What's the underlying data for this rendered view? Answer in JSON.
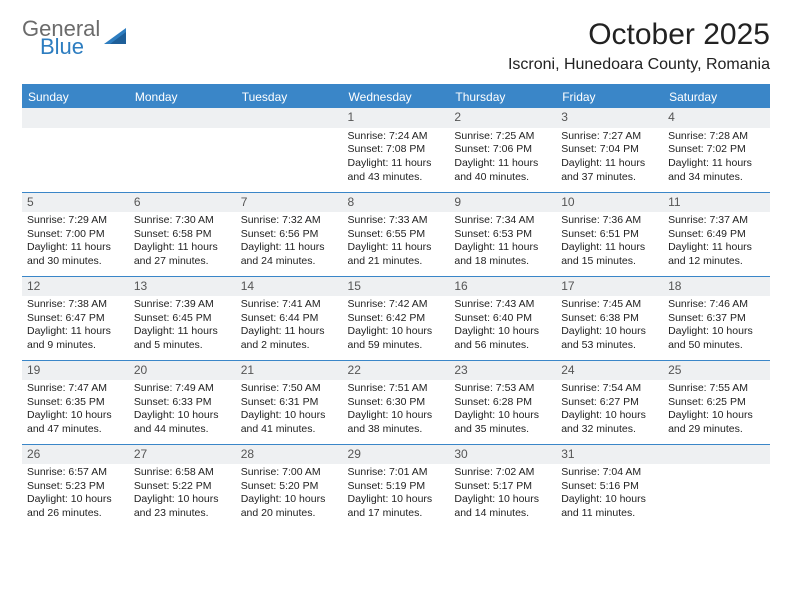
{
  "brand": {
    "general": "General",
    "blue": "Blue"
  },
  "title": "October 2025",
  "location": "Iscroni, Hunedoara County, Romania",
  "colors": {
    "header_bg": "#3a86c8",
    "header_text": "#ffffff",
    "daynum_bg": "#eef0f2",
    "border": "#3a86c8",
    "logo_gray": "#6b6b6b",
    "logo_blue": "#2d7dc0"
  },
  "weekdays": [
    "Sunday",
    "Monday",
    "Tuesday",
    "Wednesday",
    "Thursday",
    "Friday",
    "Saturday"
  ],
  "weeks": [
    [
      {
        "day": "",
        "lines": []
      },
      {
        "day": "",
        "lines": []
      },
      {
        "day": "",
        "lines": []
      },
      {
        "day": "1",
        "lines": [
          "Sunrise: 7:24 AM",
          "Sunset: 7:08 PM",
          "Daylight: 11 hours and 43 minutes."
        ]
      },
      {
        "day": "2",
        "lines": [
          "Sunrise: 7:25 AM",
          "Sunset: 7:06 PM",
          "Daylight: 11 hours and 40 minutes."
        ]
      },
      {
        "day": "3",
        "lines": [
          "Sunrise: 7:27 AM",
          "Sunset: 7:04 PM",
          "Daylight: 11 hours and 37 minutes."
        ]
      },
      {
        "day": "4",
        "lines": [
          "Sunrise: 7:28 AM",
          "Sunset: 7:02 PM",
          "Daylight: 11 hours and 34 minutes."
        ]
      }
    ],
    [
      {
        "day": "5",
        "lines": [
          "Sunrise: 7:29 AM",
          "Sunset: 7:00 PM",
          "Daylight: 11 hours and 30 minutes."
        ]
      },
      {
        "day": "6",
        "lines": [
          "Sunrise: 7:30 AM",
          "Sunset: 6:58 PM",
          "Daylight: 11 hours and 27 minutes."
        ]
      },
      {
        "day": "7",
        "lines": [
          "Sunrise: 7:32 AM",
          "Sunset: 6:56 PM",
          "Daylight: 11 hours and 24 minutes."
        ]
      },
      {
        "day": "8",
        "lines": [
          "Sunrise: 7:33 AM",
          "Sunset: 6:55 PM",
          "Daylight: 11 hours and 21 minutes."
        ]
      },
      {
        "day": "9",
        "lines": [
          "Sunrise: 7:34 AM",
          "Sunset: 6:53 PM",
          "Daylight: 11 hours and 18 minutes."
        ]
      },
      {
        "day": "10",
        "lines": [
          "Sunrise: 7:36 AM",
          "Sunset: 6:51 PM",
          "Daylight: 11 hours and 15 minutes."
        ]
      },
      {
        "day": "11",
        "lines": [
          "Sunrise: 7:37 AM",
          "Sunset: 6:49 PM",
          "Daylight: 11 hours and 12 minutes."
        ]
      }
    ],
    [
      {
        "day": "12",
        "lines": [
          "Sunrise: 7:38 AM",
          "Sunset: 6:47 PM",
          "Daylight: 11 hours and 9 minutes."
        ]
      },
      {
        "day": "13",
        "lines": [
          "Sunrise: 7:39 AM",
          "Sunset: 6:45 PM",
          "Daylight: 11 hours and 5 minutes."
        ]
      },
      {
        "day": "14",
        "lines": [
          "Sunrise: 7:41 AM",
          "Sunset: 6:44 PM",
          "Daylight: 11 hours and 2 minutes."
        ]
      },
      {
        "day": "15",
        "lines": [
          "Sunrise: 7:42 AM",
          "Sunset: 6:42 PM",
          "Daylight: 10 hours and 59 minutes."
        ]
      },
      {
        "day": "16",
        "lines": [
          "Sunrise: 7:43 AM",
          "Sunset: 6:40 PM",
          "Daylight: 10 hours and 56 minutes."
        ]
      },
      {
        "day": "17",
        "lines": [
          "Sunrise: 7:45 AM",
          "Sunset: 6:38 PM",
          "Daylight: 10 hours and 53 minutes."
        ]
      },
      {
        "day": "18",
        "lines": [
          "Sunrise: 7:46 AM",
          "Sunset: 6:37 PM",
          "Daylight: 10 hours and 50 minutes."
        ]
      }
    ],
    [
      {
        "day": "19",
        "lines": [
          "Sunrise: 7:47 AM",
          "Sunset: 6:35 PM",
          "Daylight: 10 hours and 47 minutes."
        ]
      },
      {
        "day": "20",
        "lines": [
          "Sunrise: 7:49 AM",
          "Sunset: 6:33 PM",
          "Daylight: 10 hours and 44 minutes."
        ]
      },
      {
        "day": "21",
        "lines": [
          "Sunrise: 7:50 AM",
          "Sunset: 6:31 PM",
          "Daylight: 10 hours and 41 minutes."
        ]
      },
      {
        "day": "22",
        "lines": [
          "Sunrise: 7:51 AM",
          "Sunset: 6:30 PM",
          "Daylight: 10 hours and 38 minutes."
        ]
      },
      {
        "day": "23",
        "lines": [
          "Sunrise: 7:53 AM",
          "Sunset: 6:28 PM",
          "Daylight: 10 hours and 35 minutes."
        ]
      },
      {
        "day": "24",
        "lines": [
          "Sunrise: 7:54 AM",
          "Sunset: 6:27 PM",
          "Daylight: 10 hours and 32 minutes."
        ]
      },
      {
        "day": "25",
        "lines": [
          "Sunrise: 7:55 AM",
          "Sunset: 6:25 PM",
          "Daylight: 10 hours and 29 minutes."
        ]
      }
    ],
    [
      {
        "day": "26",
        "lines": [
          "Sunrise: 6:57 AM",
          "Sunset: 5:23 PM",
          "Daylight: 10 hours and 26 minutes."
        ]
      },
      {
        "day": "27",
        "lines": [
          "Sunrise: 6:58 AM",
          "Sunset: 5:22 PM",
          "Daylight: 10 hours and 23 minutes."
        ]
      },
      {
        "day": "28",
        "lines": [
          "Sunrise: 7:00 AM",
          "Sunset: 5:20 PM",
          "Daylight: 10 hours and 20 minutes."
        ]
      },
      {
        "day": "29",
        "lines": [
          "Sunrise: 7:01 AM",
          "Sunset: 5:19 PM",
          "Daylight: 10 hours and 17 minutes."
        ]
      },
      {
        "day": "30",
        "lines": [
          "Sunrise: 7:02 AM",
          "Sunset: 5:17 PM",
          "Daylight: 10 hours and 14 minutes."
        ]
      },
      {
        "day": "31",
        "lines": [
          "Sunrise: 7:04 AM",
          "Sunset: 5:16 PM",
          "Daylight: 10 hours and 11 minutes."
        ]
      },
      {
        "day": "",
        "lines": []
      }
    ]
  ]
}
